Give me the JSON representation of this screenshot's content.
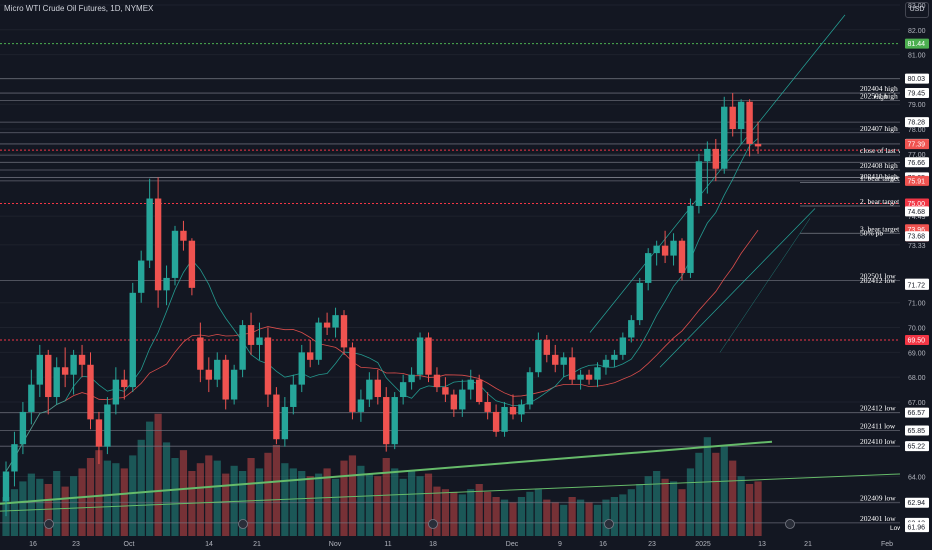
{
  "header": {
    "title": "Micro WTI Crude Oil Futures, 1D, NYMEX",
    "currency": "USD"
  },
  "colors": {
    "background": "#131722",
    "bull": "#26a69a",
    "bear": "#ef5350",
    "axis_text": "#b2b5be",
    "level_line": "#787b86",
    "green_trend": "#66bb6a",
    "red_dotted": "#f23645",
    "green_dotted": "#4caf50"
  },
  "chart_data": {
    "type": "candlestick",
    "title": "Micro WTI Crude Oil Futures, 1D, NYMEX",
    "ylim": [
      61.6,
      83.2
    ],
    "y_ticks": [
      83.0,
      82.0,
      81.0,
      80.03,
      79.0,
      78.0,
      77.0,
      76.05,
      74.49,
      73.33,
      71.0,
      70.0,
      69.0,
      68.0,
      67.0,
      64.0,
      63.0
    ],
    "x_tick_labels": [
      "16",
      "23",
      "Oct",
      "14",
      "21",
      "Nov",
      "11",
      "18",
      "Dec",
      "9",
      "16",
      "23",
      "2025",
      "13",
      "21",
      "Feb"
    ],
    "candles": [
      {
        "o": 63.0,
        "h": 64.6,
        "l": 62.4,
        "c": 64.2
      },
      {
        "o": 64.2,
        "h": 65.8,
        "l": 63.6,
        "c": 65.3
      },
      {
        "o": 65.3,
        "h": 67.0,
        "l": 64.9,
        "c": 66.6
      },
      {
        "o": 66.6,
        "h": 68.3,
        "l": 66.1,
        "c": 67.7
      },
      {
        "o": 67.7,
        "h": 69.3,
        "l": 67.2,
        "c": 68.9
      },
      {
        "o": 68.9,
        "h": 69.1,
        "l": 66.5,
        "c": 67.2
      },
      {
        "o": 67.2,
        "h": 68.8,
        "l": 66.9,
        "c": 68.4
      },
      {
        "o": 68.4,
        "h": 69.2,
        "l": 67.6,
        "c": 68.1
      },
      {
        "o": 68.1,
        "h": 69.1,
        "l": 67.3,
        "c": 68.9
      },
      {
        "o": 68.9,
        "h": 69.3,
        "l": 68.0,
        "c": 68.5
      },
      {
        "o": 68.5,
        "h": 69.0,
        "l": 65.9,
        "c": 66.3
      },
      {
        "o": 66.3,
        "h": 66.6,
        "l": 64.5,
        "c": 65.2
      },
      {
        "o": 65.2,
        "h": 67.2,
        "l": 64.9,
        "c": 66.9
      },
      {
        "o": 66.9,
        "h": 68.4,
        "l": 66.5,
        "c": 67.9
      },
      {
        "o": 67.9,
        "h": 68.3,
        "l": 67.1,
        "c": 67.6
      },
      {
        "o": 67.6,
        "h": 71.8,
        "l": 67.4,
        "c": 71.4
      },
      {
        "o": 71.4,
        "h": 73.1,
        "l": 71.0,
        "c": 72.7
      },
      {
        "o": 72.7,
        "h": 76.0,
        "l": 72.4,
        "c": 75.2
      },
      {
        "o": 75.2,
        "h": 76.05,
        "l": 70.8,
        "c": 71.5
      },
      {
        "o": 71.5,
        "h": 72.5,
        "l": 70.9,
        "c": 72.0
      },
      {
        "o": 72.0,
        "h": 74.1,
        "l": 71.7,
        "c": 73.9
      },
      {
        "o": 73.9,
        "h": 74.3,
        "l": 73.1,
        "c": 73.5
      },
      {
        "o": 73.5,
        "h": 73.6,
        "l": 71.3,
        "c": 71.6
      },
      {
        "o": 69.6,
        "h": 70.2,
        "l": 67.8,
        "c": 68.3
      },
      {
        "o": 68.3,
        "h": 68.8,
        "l": 67.4,
        "c": 67.9
      },
      {
        "o": 67.9,
        "h": 69.0,
        "l": 67.6,
        "c": 68.7
      },
      {
        "o": 68.7,
        "h": 68.9,
        "l": 66.7,
        "c": 67.1
      },
      {
        "o": 67.1,
        "h": 68.5,
        "l": 66.9,
        "c": 68.3
      },
      {
        "o": 68.3,
        "h": 70.3,
        "l": 68.0,
        "c": 70.1
      },
      {
        "o": 70.1,
        "h": 70.6,
        "l": 68.9,
        "c": 69.3
      },
      {
        "o": 69.3,
        "h": 70.2,
        "l": 68.7,
        "c": 69.6
      },
      {
        "o": 69.6,
        "h": 70.0,
        "l": 66.8,
        "c": 67.3
      },
      {
        "o": 67.3,
        "h": 67.6,
        "l": 65.3,
        "c": 65.5
      },
      {
        "o": 65.5,
        "h": 67.2,
        "l": 65.2,
        "c": 66.8
      },
      {
        "o": 66.8,
        "h": 68.1,
        "l": 66.5,
        "c": 67.7
      },
      {
        "o": 67.7,
        "h": 69.3,
        "l": 67.4,
        "c": 69.0
      },
      {
        "o": 69.0,
        "h": 69.5,
        "l": 68.4,
        "c": 68.7
      },
      {
        "o": 68.7,
        "h": 70.4,
        "l": 68.5,
        "c": 70.2
      },
      {
        "o": 70.2,
        "h": 70.6,
        "l": 69.7,
        "c": 70.0
      },
      {
        "o": 70.0,
        "h": 70.8,
        "l": 69.6,
        "c": 70.5
      },
      {
        "o": 70.5,
        "h": 70.7,
        "l": 68.9,
        "c": 69.2
      },
      {
        "o": 69.2,
        "h": 69.4,
        "l": 66.3,
        "c": 66.6
      },
      {
        "o": 66.6,
        "h": 67.5,
        "l": 66.2,
        "c": 67.1
      },
      {
        "o": 67.1,
        "h": 68.2,
        "l": 66.8,
        "c": 67.9
      },
      {
        "o": 67.9,
        "h": 68.3,
        "l": 66.9,
        "c": 67.2
      },
      {
        "o": 67.2,
        "h": 67.6,
        "l": 65.0,
        "c": 65.3
      },
      {
        "o": 65.3,
        "h": 67.4,
        "l": 65.1,
        "c": 67.2
      },
      {
        "o": 67.2,
        "h": 68.1,
        "l": 66.9,
        "c": 67.8
      },
      {
        "o": 67.8,
        "h": 68.4,
        "l": 67.5,
        "c": 68.1
      },
      {
        "o": 68.1,
        "h": 69.8,
        "l": 67.9,
        "c": 69.6
      },
      {
        "o": 69.6,
        "h": 69.8,
        "l": 67.8,
        "c": 68.1
      },
      {
        "o": 68.1,
        "h": 68.4,
        "l": 67.4,
        "c": 67.6
      },
      {
        "o": 67.6,
        "h": 68.0,
        "l": 67.0,
        "c": 67.3
      },
      {
        "o": 67.3,
        "h": 67.5,
        "l": 66.4,
        "c": 66.7
      },
      {
        "o": 66.7,
        "h": 67.9,
        "l": 66.4,
        "c": 67.5
      },
      {
        "o": 67.5,
        "h": 68.3,
        "l": 67.1,
        "c": 67.9
      },
      {
        "o": 67.9,
        "h": 68.1,
        "l": 66.9,
        "c": 67.0
      },
      {
        "o": 67.0,
        "h": 67.4,
        "l": 66.3,
        "c": 66.6
      },
      {
        "o": 66.6,
        "h": 66.9,
        "l": 65.6,
        "c": 65.8
      },
      {
        "o": 65.8,
        "h": 67.0,
        "l": 65.6,
        "c": 66.8
      },
      {
        "o": 66.8,
        "h": 67.3,
        "l": 66.3,
        "c": 66.5
      },
      {
        "o": 66.5,
        "h": 67.1,
        "l": 66.2,
        "c": 66.9
      },
      {
        "o": 66.9,
        "h": 68.4,
        "l": 66.7,
        "c": 68.2
      },
      {
        "o": 68.2,
        "h": 69.8,
        "l": 68.0,
        "c": 69.5
      },
      {
        "o": 69.5,
        "h": 69.7,
        "l": 68.6,
        "c": 68.9
      },
      {
        "o": 68.9,
        "h": 69.3,
        "l": 68.2,
        "c": 68.5
      },
      {
        "o": 68.5,
        "h": 69.0,
        "l": 68.0,
        "c": 68.8
      },
      {
        "o": 68.8,
        "h": 69.2,
        "l": 67.7,
        "c": 67.9
      },
      {
        "o": 67.9,
        "h": 68.3,
        "l": 67.5,
        "c": 68.1
      },
      {
        "o": 68.1,
        "h": 68.3,
        "l": 67.7,
        "c": 67.9
      },
      {
        "o": 67.9,
        "h": 68.6,
        "l": 67.6,
        "c": 68.4
      },
      {
        "o": 68.4,
        "h": 68.9,
        "l": 68.1,
        "c": 68.7
      },
      {
        "o": 68.7,
        "h": 69.1,
        "l": 68.4,
        "c": 68.9
      },
      {
        "o": 68.9,
        "h": 69.8,
        "l": 68.7,
        "c": 69.6
      },
      {
        "o": 69.6,
        "h": 70.5,
        "l": 69.4,
        "c": 70.3
      },
      {
        "o": 70.3,
        "h": 72.0,
        "l": 70.1,
        "c": 71.8
      },
      {
        "o": 71.8,
        "h": 73.2,
        "l": 71.5,
        "c": 73.0
      },
      {
        "o": 73.0,
        "h": 73.5,
        "l": 72.5,
        "c": 73.3
      },
      {
        "o": 73.3,
        "h": 73.9,
        "l": 72.6,
        "c": 72.9
      },
      {
        "o": 72.9,
        "h": 73.8,
        "l": 72.5,
        "c": 73.5
      },
      {
        "o": 73.5,
        "h": 73.6,
        "l": 71.9,
        "c": 72.2
      },
      {
        "o": 72.2,
        "h": 75.2,
        "l": 72.0,
        "c": 74.9
      },
      {
        "o": 74.9,
        "h": 77.0,
        "l": 74.6,
        "c": 76.7
      },
      {
        "o": 76.7,
        "h": 77.5,
        "l": 75.4,
        "c": 77.2
      },
      {
        "o": 77.2,
        "h": 77.6,
        "l": 75.9,
        "c": 76.4
      },
      {
        "o": 76.4,
        "h": 79.3,
        "l": 76.2,
        "c": 78.9
      },
      {
        "o": 78.9,
        "h": 79.45,
        "l": 77.7,
        "c": 78.0
      },
      {
        "o": 78.0,
        "h": 79.2,
        "l": 77.4,
        "c": 79.1
      },
      {
        "o": 79.1,
        "h": 79.2,
        "l": 76.9,
        "c": 77.4
      },
      {
        "o": 77.4,
        "h": 78.3,
        "l": 77.0,
        "c": 77.3
      }
    ],
    "volume": [
      0.3,
      0.36,
      0.42,
      0.48,
      0.44,
      0.4,
      0.5,
      0.38,
      0.46,
      0.52,
      0.6,
      0.66,
      0.58,
      0.56,
      0.52,
      0.62,
      0.74,
      0.88,
      0.94,
      0.72,
      0.6,
      0.66,
      0.5,
      0.56,
      0.62,
      0.58,
      0.48,
      0.54,
      0.5,
      0.6,
      0.52,
      0.64,
      0.7,
      0.56,
      0.52,
      0.5,
      0.46,
      0.48,
      0.52,
      0.44,
      0.58,
      0.62,
      0.54,
      0.48,
      0.46,
      0.6,
      0.52,
      0.44,
      0.5,
      0.46,
      0.48,
      0.38,
      0.36,
      0.34,
      0.32,
      0.36,
      0.4,
      0.34,
      0.3,
      0.28,
      0.26,
      0.3,
      0.34,
      0.36,
      0.28,
      0.26,
      0.24,
      0.3,
      0.28,
      0.26,
      0.24,
      0.28,
      0.3,
      0.32,
      0.36,
      0.4,
      0.46,
      0.5,
      0.44,
      0.42,
      0.36,
      0.52,
      0.64,
      0.76,
      0.64,
      0.7,
      0.58,
      0.46,
      0.4,
      0.42
    ],
    "horizontal_levels": [
      {
        "price": 80.03,
        "label": "",
        "badge": "80.03",
        "style": "solid"
      },
      {
        "price": 79.45,
        "label": "202404 high",
        "badge": "79.45",
        "style": "solid"
      },
      {
        "price": 79.15,
        "label": "202501 high",
        "badge": "",
        "style": "solid"
      },
      {
        "price": 78.28,
        "label": "",
        "badge": "78.28",
        "style": "solid"
      },
      {
        "price": 77.85,
        "label": "202407 high",
        "badge": "",
        "style": "solid"
      },
      {
        "price": 77.4,
        "label": "",
        "badge": "77.40",
        "style": "solid"
      },
      {
        "price": 76.95,
        "label": "close of last week",
        "badge": "",
        "style": "solid"
      },
      {
        "price": 76.66,
        "label": "",
        "badge": "76.66",
        "style": "solid"
      },
      {
        "price": 76.35,
        "label": "202408 high",
        "badge": "",
        "style": "solid"
      },
      {
        "price": 76.05,
        "label": "",
        "badge": "76.05",
        "style": "solid"
      },
      {
        "price": 75.91,
        "label": "202410 high",
        "badge": "",
        "style": "solid"
      },
      {
        "price": 75.85,
        "label": "1. bear target",
        "badge": "",
        "style": "short"
      },
      {
        "price": 74.9,
        "label": "2. bear target",
        "badge": "",
        "style": "short"
      },
      {
        "price": 73.8,
        "label": "3. bear target",
        "badge": "",
        "style": "short"
      },
      {
        "price": 73.63,
        "label": "50% pb",
        "badge": "",
        "style": "none"
      },
      {
        "price": 71.9,
        "label": "202501 low",
        "badge": "",
        "style": "solid"
      },
      {
        "price": 71.72,
        "label": "202412 low",
        "badge": "",
        "style": "none"
      },
      {
        "price": 66.57,
        "label": "202412 low",
        "badge": "66.57",
        "style": "solid"
      },
      {
        "price": 65.85,
        "label": "202411 low",
        "badge": "65.85",
        "style": "solid"
      },
      {
        "price": 65.22,
        "label": "202410 low",
        "badge": "65.22",
        "style": "solid"
      },
      {
        "price": 62.94,
        "label": "202409 low",
        "badge": "62.94",
        "style": "solid"
      },
      {
        "price": 62.13,
        "label": "202401 low",
        "badge": "62.13",
        "style": "solid"
      }
    ],
    "price_badges": [
      {
        "price": 81.44,
        "text": "81.44",
        "bg": "#4caf50"
      },
      {
        "price": 77.39,
        "text": "77.39",
        "bg": "#ef5350"
      },
      {
        "price": 75.91,
        "text": "75.91",
        "bg": "#ef5350"
      },
      {
        "price": 75.0,
        "text": "75.00",
        "bg": "#f23645"
      },
      {
        "price": 74.68,
        "text": "74.68",
        "bg": ""
      },
      {
        "price": 73.96,
        "text": "73.96",
        "bg": "#ef5350"
      },
      {
        "price": 73.68,
        "text": "73.68",
        "bg": "#ef5350"
      },
      {
        "price": 73.68,
        "text": "73.68",
        "bg": ""
      },
      {
        "price": 71.77,
        "text": "71.77",
        "bg": ""
      },
      {
        "price": 71.72,
        "text": "71.72",
        "bg": ""
      },
      {
        "price": 69.5,
        "text": "69.50",
        "bg": "#f23645"
      },
      {
        "price": 61.96,
        "text": "61.96",
        "bg": ""
      }
    ],
    "dotted_levels": [
      {
        "price": 81.44,
        "color": "#4caf50"
      },
      {
        "price": 75.0,
        "color": "#f23645"
      },
      {
        "price": 69.5,
        "color": "#f23645"
      },
      {
        "price": 77.15,
        "color": "#f23645"
      }
    ],
    "annotations": [
      {
        "text": "High"
      },
      {
        "text": "Low"
      }
    ]
  }
}
